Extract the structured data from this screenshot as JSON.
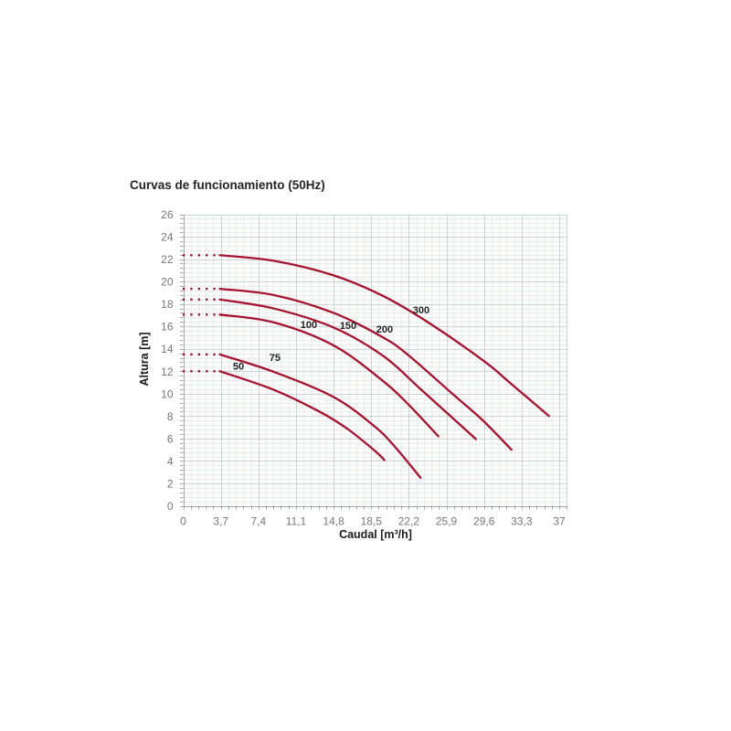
{
  "page": {
    "background": "#ffffff"
  },
  "chart_data": {
    "type": "line",
    "title": "Curvas de funcionamiento (50Hz)",
    "xlabel": "Caudal [m³/h]",
    "ylabel": "Altura [m]",
    "xlim": [
      0,
      37.76
    ],
    "ylim": [
      0,
      26
    ],
    "x_ticks": [
      0,
      3.7,
      7.4,
      11.1,
      14.8,
      18.5,
      22.2,
      25.9,
      29.6,
      33.3,
      37
    ],
    "x_tick_labels": [
      "0",
      "3,7",
      "7,4",
      "11,1",
      "14,8",
      "18,5",
      "22,2",
      "25,9",
      "29,6",
      "33,3",
      "37"
    ],
    "y_ticks": [
      0,
      2,
      4,
      6,
      8,
      10,
      12,
      14,
      16,
      18,
      20,
      22,
      24,
      26
    ],
    "y_tick_labels": [
      "0",
      "2",
      "4",
      "6",
      "8",
      "10",
      "12",
      "14",
      "16",
      "18",
      "20",
      "22",
      "24",
      "26"
    ],
    "x_minor_step": 0.74,
    "y_minor_step": 0.4,
    "grid": "major+minor",
    "legend": "inline-curve-labels",
    "colors": {
      "curve": "#a51330",
      "dots": "#95102a",
      "grid_major": "#ced3d5",
      "plot_bg": "#fafbfa",
      "grid_minor": "#e8ede9",
      "axis": "#a0a6ac",
      "tick_label": "#767676",
      "curve_label": "#232323"
    },
    "series": [
      {
        "name": "50",
        "shutoff_head": 12.0,
        "dotted_x": [
          0.05,
          0.8,
          1.56,
          2.31,
          3.06
        ],
        "points": [
          [
            3.6,
            12.0
          ],
          [
            8.9,
            10.35
          ],
          [
            13.4,
            8.4
          ],
          [
            16.1,
            6.9
          ],
          [
            18.8,
            4.95
          ],
          [
            19.8,
            4.08
          ]
        ],
        "label": "50",
        "label_pos": [
          5.44,
          12.45
        ]
      },
      {
        "name": "75",
        "shutoff_head": 13.5,
        "dotted_x": [
          0.05,
          0.8,
          1.56,
          2.31,
          3.06
        ],
        "points": [
          [
            3.6,
            13.5
          ],
          [
            8.9,
            11.95
          ],
          [
            14.8,
            9.7
          ],
          [
            18.8,
            7.1
          ],
          [
            20.8,
            5.3
          ],
          [
            23.35,
            2.5
          ]
        ],
        "label": "75",
        "label_pos": [
          9.03,
          13.24
        ]
      },
      {
        "name": "100",
        "shutoff_head": 17.05,
        "dotted_x": [
          0.05,
          0.8,
          1.56,
          2.31,
          3.06
        ],
        "points": [
          [
            3.6,
            17.05
          ],
          [
            8.9,
            16.36
          ],
          [
            14.8,
            14.3
          ],
          [
            19.7,
            11.1
          ],
          [
            22.2,
            9.0
          ],
          [
            25.1,
            6.2
          ]
        ],
        "label": "100",
        "label_pos": [
          12.36,
          16.18
        ]
      },
      {
        "name": "150",
        "shutoff_head": 18.4,
        "dotted_x": [
          0.05,
          0.8,
          1.56,
          2.31,
          3.06
        ],
        "points": [
          [
            3.6,
            18.4
          ],
          [
            8.9,
            17.6
          ],
          [
            14.8,
            15.9
          ],
          [
            19.7,
            13.35
          ],
          [
            23.3,
            10.45
          ],
          [
            26.3,
            8.0
          ],
          [
            28.8,
            5.95
          ]
        ],
        "label": "150",
        "label_pos": [
          16.23,
          16.1
        ]
      },
      {
        "name": "200",
        "shutoff_head": 19.35,
        "dotted_x": [
          0.05,
          0.8,
          1.56,
          2.31,
          3.06
        ],
        "points": [
          [
            3.6,
            19.35
          ],
          [
            8.9,
            18.8
          ],
          [
            14.8,
            17.2
          ],
          [
            19.7,
            15.0
          ],
          [
            22.2,
            13.4
          ],
          [
            26.6,
            9.9
          ],
          [
            29.5,
            7.6
          ],
          [
            32.3,
            5.0
          ]
        ],
        "label": "200",
        "label_pos": [
          19.82,
          15.77
        ]
      },
      {
        "name": "300",
        "shutoff_head": 22.35,
        "dotted_x": [
          0.05,
          0.8,
          1.56,
          2.31,
          3.06
        ],
        "points": [
          [
            3.6,
            22.35
          ],
          [
            8.9,
            21.85
          ],
          [
            14.8,
            20.55
          ],
          [
            19.7,
            18.7
          ],
          [
            24.2,
            16.3
          ],
          [
            29.6,
            12.9
          ],
          [
            32.3,
            10.85
          ],
          [
            36.0,
            8.0
          ]
        ],
        "label": "300",
        "label_pos": [
          23.42,
          17.48
        ]
      }
    ]
  }
}
